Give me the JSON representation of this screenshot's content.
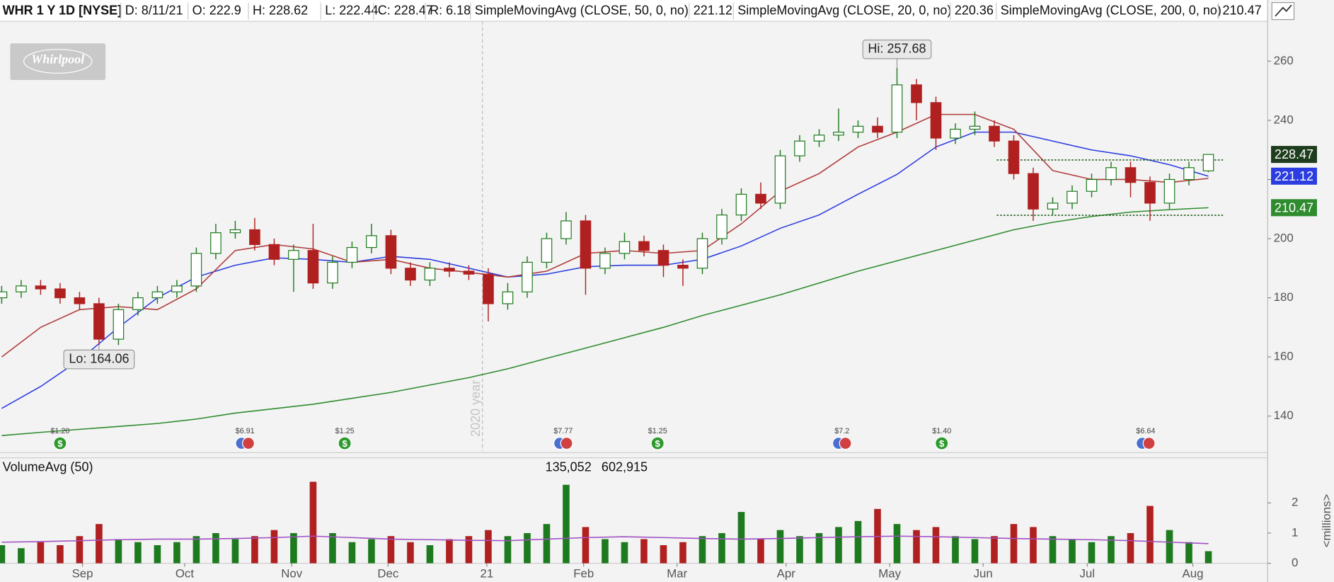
{
  "chart_data": {
    "type": "candlestick",
    "header": {
      "symbol": "WHR 1 Y 1D [NYSE]",
      "date": "D: 8/11/21",
      "open": "O: 222.9",
      "high": "H: 228.62",
      "low": "L: 222.44",
      "close": "C: 228.47",
      "range": "R: 6.18"
    },
    "logo": "Whirlpool",
    "xlim": [
      0,
      260
    ],
    "xticks": [
      {
        "value": 16.6,
        "label": "Sep"
      },
      {
        "value": 37.6,
        "label": "Oct"
      },
      {
        "value": 59.6,
        "label": "Nov"
      },
      {
        "value": 79.4,
        "label": "Dec"
      },
      {
        "value": 99.7,
        "label": "21"
      },
      {
        "value": 119.6,
        "label": "Feb"
      },
      {
        "value": 138.8,
        "label": "Mar"
      },
      {
        "value": 161.2,
        "label": "Apr"
      },
      {
        "value": 182.5,
        "label": "May"
      },
      {
        "value": 201.7,
        "label": "Jun"
      },
      {
        "value": 223.1,
        "label": "Jul"
      },
      {
        "value": 244.8,
        "label": "Aug"
      }
    ],
    "ylim": [
      128.2,
      273.5
    ],
    "yticks": [
      140,
      160,
      180,
      200,
      220,
      240,
      260
    ],
    "up_color": "#1e7a1e",
    "down_color": "#b02020",
    "x": [
      0,
      4,
      8,
      12,
      16,
      20,
      24,
      28,
      32,
      36,
      40,
      44,
      48,
      52,
      56,
      60,
      64,
      68,
      72,
      76,
      80,
      84,
      88,
      92,
      96,
      100,
      104,
      108,
      112,
      116,
      120,
      124,
      128,
      132,
      136,
      140,
      144,
      148,
      152,
      156,
      160,
      164,
      168,
      172,
      176,
      180,
      184,
      188,
      192,
      196,
      200,
      204,
      208,
      212,
      216,
      220,
      224,
      228,
      232,
      236,
      240,
      244,
      248
    ],
    "open": [
      180,
      182,
      184,
      183,
      180,
      178,
      166,
      176,
      180,
      182,
      184,
      195,
      202,
      203,
      198,
      193,
      196,
      185,
      192,
      197,
      201,
      190,
      186,
      190,
      189,
      188,
      178,
      182,
      192,
      200,
      206,
      190,
      195,
      199,
      196,
      191,
      190,
      200,
      208,
      215,
      212,
      228,
      233,
      235,
      236,
      238,
      236,
      252,
      246,
      234,
      237,
      238,
      233,
      222,
      210,
      212,
      216,
      220,
      224,
      219,
      212,
      220,
      222.9
    ],
    "high": [
      184,
      186,
      186,
      185,
      182,
      180,
      178,
      182,
      184,
      186,
      197,
      205,
      206,
      207,
      200,
      198,
      205,
      194,
      199,
      205,
      203,
      192,
      192,
      192,
      191,
      190,
      185,
      194,
      202,
      209,
      208,
      197,
      202,
      201,
      198,
      193,
      202,
      210,
      217,
      219,
      230,
      235,
      237,
      244,
      240,
      241,
      257.68,
      254,
      248,
      239,
      243,
      240,
      235,
      224,
      214,
      218,
      222,
      226,
      226,
      221,
      222,
      226,
      228.62
    ],
    "low": [
      178,
      180,
      181,
      178,
      176,
      164.06,
      164,
      174,
      178,
      180,
      182,
      193,
      200,
      196,
      191,
      182,
      183,
      183,
      190,
      195,
      188,
      184,
      184,
      187,
      186,
      172,
      176,
      180,
      190,
      198,
      181,
      188,
      193,
      194,
      187,
      184,
      188,
      198,
      206,
      210,
      210,
      226,
      231,
      233,
      234,
      234,
      234,
      240,
      230,
      232,
      235,
      231,
      220,
      206,
      208,
      210,
      214,
      218,
      214,
      206,
      210,
      218,
      222.44
    ],
    "close": [
      182,
      184,
      183,
      180,
      178,
      166,
      176,
      180,
      182,
      184,
      195,
      202,
      203,
      198,
      193,
      196,
      185,
      192,
      197,
      201,
      190,
      186,
      190,
      189,
      188,
      178,
      182,
      192,
      200,
      206,
      190,
      195,
      199,
      196,
      191,
      190,
      200,
      208,
      215,
      212,
      228,
      233,
      235,
      236,
      238,
      236,
      252,
      246,
      234,
      237,
      238,
      233,
      222,
      210,
      212,
      216,
      220,
      224,
      219,
      212,
      220,
      224,
      228.47
    ],
    "price_tag": "228.47",
    "overlays": [
      {
        "name": "SimpleMovingAvg (CLOSE, 50, 0, no)",
        "last_label": "221.12",
        "color": "#2b3de0",
        "tag": true,
        "x": [
          0,
          8,
          16,
          24,
          32,
          40,
          48,
          56,
          64,
          72,
          80,
          88,
          96,
          104,
          112,
          120,
          128,
          136,
          144,
          152,
          160,
          168,
          176,
          184,
          192,
          200,
          208,
          216,
          224,
          232,
          240,
          248
        ],
        "values": [
          142.6,
          150,
          159,
          170,
          180,
          187,
          191,
          193.5,
          193,
          192,
          194,
          193,
          190,
          187,
          188,
          190.5,
          191,
          191,
          193,
          197.5,
          203.5,
          208,
          215,
          221.7,
          231,
          236,
          236,
          233,
          230,
          228,
          225,
          221.12
        ]
      },
      {
        "name": "SimpleMovingAvg (CLOSE, 20, 0, no)",
        "last_label": "220.36",
        "color": "#b03a3a",
        "tag": false,
        "x": [
          0,
          8,
          16,
          24,
          32,
          40,
          48,
          56,
          64,
          72,
          80,
          88,
          96,
          104,
          112,
          120,
          128,
          136,
          144,
          152,
          160,
          168,
          176,
          184,
          192,
          200,
          208,
          216,
          224,
          232,
          240,
          248
        ],
        "values": [
          160,
          170,
          176,
          177,
          176,
          183,
          196,
          198,
          196.5,
          192,
          193,
          190,
          188.6,
          187,
          189,
          195,
          196,
          195,
          196,
          205,
          216,
          222,
          231,
          236,
          242,
          242,
          237,
          223,
          220,
          220,
          219,
          220.36
        ]
      },
      {
        "name": "SimpleMovingAvg (CLOSE, 200, 0, no)",
        "last_label": "210.47",
        "color": "#2e8b2e",
        "tag": true,
        "x": [
          0,
          8,
          16,
          24,
          32,
          40,
          48,
          56,
          64,
          72,
          80,
          88,
          96,
          104,
          112,
          120,
          128,
          136,
          144,
          152,
          160,
          168,
          176,
          184,
          192,
          200,
          208,
          216,
          224,
          232,
          240,
          248
        ],
        "values": [
          133.4,
          134.5,
          135.5,
          136.5,
          137.5,
          139,
          141,
          142.5,
          144,
          146,
          148,
          150.5,
          153,
          156,
          159.5,
          163,
          166.5,
          170,
          174,
          177.5,
          181,
          185,
          189,
          192.5,
          196,
          199.5,
          203,
          205.5,
          207.5,
          209,
          209.8,
          210.47
        ]
      }
    ],
    "annotations": [
      {
        "label": "Hi: 257.68",
        "x": 184,
        "value": 257.68,
        "side": "above"
      },
      {
        "label": "Lo: 164.06",
        "x": 20,
        "value": 164.06,
        "side": "below"
      }
    ],
    "levels": [
      {
        "value": 226.6,
        "x": [
          204.5,
          251
        ]
      },
      {
        "value": 207.9,
        "x": [
          204.5,
          251
        ]
      }
    ],
    "divider": {
      "x": 98.8,
      "label": "2020 year"
    },
    "events": {
      "icon": "$",
      "items": [
        {
          "x": 12,
          "label": "$1.20",
          "kind": "dividend"
        },
        {
          "x": 50,
          "label": "$6.91",
          "kind": "earnings"
        },
        {
          "x": 70.5,
          "label": "$1.25",
          "kind": "dividend"
        },
        {
          "x": 115.4,
          "label": "$7.77",
          "kind": "earnings"
        },
        {
          "x": 134.8,
          "label": "$1.25",
          "kind": "dividend"
        },
        {
          "x": 172.7,
          "label": "$7.2",
          "kind": "earnings"
        },
        {
          "x": 193.2,
          "label": "$1.40",
          "kind": "dividend"
        },
        {
          "x": 235.1,
          "label": "$6.64",
          "kind": "earnings"
        }
      ]
    },
    "volume": {
      "title": "VolumeAvg (50)",
      "labels": [
        "135,052",
        "602,915"
      ],
      "unit_label": "<millions>",
      "ylim": [
        0,
        2.79
      ],
      "yticks": [
        0,
        1,
        2
      ],
      "values": [
        0.6,
        0.5,
        0.7,
        0.6,
        0.9,
        1.3,
        0.8,
        0.7,
        0.6,
        0.7,
        0.9,
        1.0,
        0.8,
        0.9,
        1.1,
        1.0,
        2.7,
        1.0,
        0.7,
        0.8,
        0.9,
        0.7,
        0.6,
        0.8,
        0.9,
        1.1,
        0.9,
        1.0,
        1.3,
        2.6,
        1.2,
        0.8,
        0.7,
        0.8,
        0.6,
        0.7,
        0.9,
        1.0,
        1.7,
        0.8,
        1.1,
        0.9,
        1.0,
        1.2,
        1.4,
        1.8,
        1.3,
        1.1,
        1.2,
        0.9,
        0.8,
        0.9,
        1.3,
        1.2,
        0.9,
        0.8,
        0.7,
        0.9,
        1.0,
        1.9,
        1.1,
        0.7,
        0.4
      ],
      "avg": {
        "color": "#a04fc4",
        "x": [
          0,
          8,
          16,
          24,
          32,
          40,
          48,
          56,
          64,
          72,
          80,
          88,
          96,
          104,
          112,
          120,
          128,
          136,
          144,
          152,
          160,
          168,
          176,
          184,
          192,
          200,
          208,
          216,
          224,
          232,
          240,
          248
        ],
        "values": [
          0.7,
          0.72,
          0.75,
          0.78,
          0.8,
          0.8,
          0.82,
          0.85,
          0.9,
          0.85,
          0.8,
          0.78,
          0.76,
          0.75,
          0.8,
          0.85,
          0.88,
          0.85,
          0.82,
          0.8,
          0.82,
          0.85,
          0.88,
          0.9,
          0.88,
          0.85,
          0.82,
          0.8,
          0.78,
          0.75,
          0.7,
          0.65
        ]
      }
    }
  }
}
